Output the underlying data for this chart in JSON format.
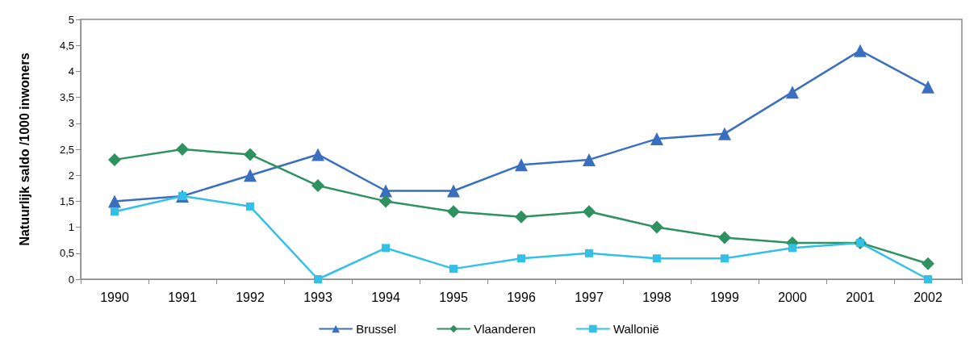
{
  "chart_data": {
    "type": "line",
    "ylabel": "Natuurlijk saldo /1000 inwoners",
    "categories": [
      "1990",
      "1991",
      "1992",
      "1993",
      "1994",
      "1995",
      "1996",
      "1997",
      "1998",
      "1999",
      "2000",
      "2001",
      "2002"
    ],
    "series": [
      {
        "name": "Brussel",
        "color": "#3a6fc0",
        "marker": "triangle",
        "values": [
          1.5,
          1.6,
          2.0,
          2.4,
          1.7,
          1.7,
          2.2,
          2.3,
          2.7,
          2.8,
          3.6,
          4.4,
          3.7
        ]
      },
      {
        "name": "Vlaanderen",
        "color": "#2e9160",
        "marker": "diamond",
        "values": [
          2.3,
          2.5,
          2.4,
          1.8,
          1.5,
          1.3,
          1.2,
          1.3,
          1.0,
          0.8,
          0.7,
          0.7,
          0.3
        ]
      },
      {
        "name": "Wallonië",
        "color": "#33c0e8",
        "marker": "square",
        "values": [
          1.3,
          1.6,
          1.4,
          0.0,
          0.6,
          0.2,
          0.4,
          0.5,
          0.4,
          0.4,
          0.6,
          0.7,
          0.0
        ]
      }
    ],
    "ylim": [
      0,
      5
    ],
    "yticks": [
      0,
      {
        "value": 0.5,
        "label": "0,5"
      },
      1,
      {
        "value": 1.5,
        "label": "1,5"
      },
      2,
      {
        "value": 2.5,
        "label": "2,5"
      },
      3,
      {
        "value": 3.5,
        "label": "3,5"
      },
      4,
      {
        "value": 4.5,
        "label": "4,5"
      },
      5
    ],
    "grid": false,
    "legend": "bottom",
    "line_style": "solid"
  }
}
